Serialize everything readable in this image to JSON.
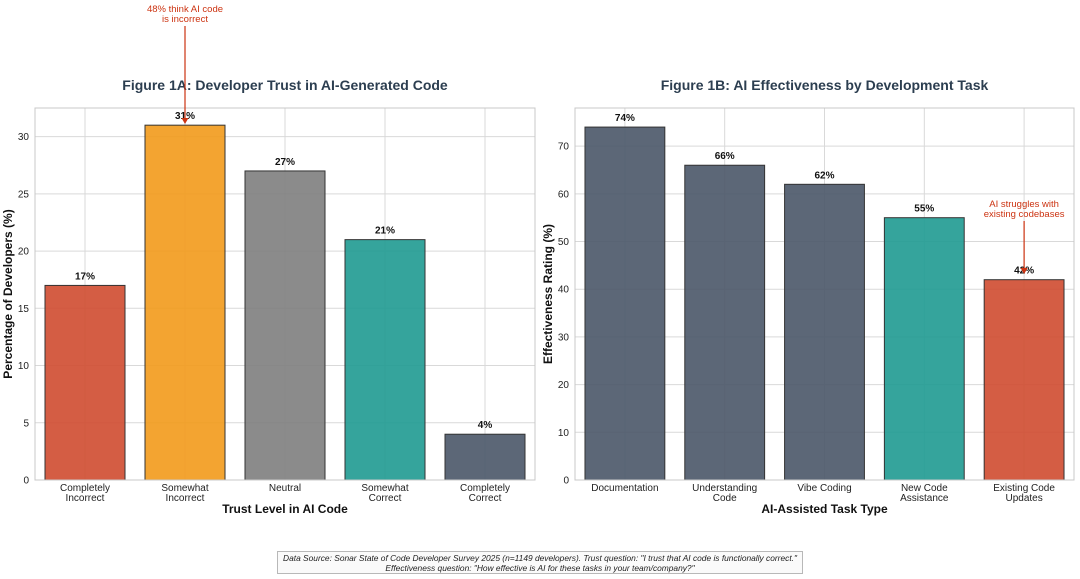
{
  "colors": {
    "red": "#cf4b30",
    "orange": "#f29a1b",
    "gray": "#7e7e7e",
    "teal": "#1f9a91",
    "slate": "#4a5668",
    "annotation": "#cc3311",
    "title": "#2c3e50"
  },
  "chart_data": [
    {
      "type": "bar",
      "title": "Figure 1A: Developer Trust in AI-Generated Code",
      "xlabel": "Trust Level in AI Code",
      "ylabel": "Percentage of Developers (%)",
      "ylim": [
        0,
        32.5
      ],
      "yticks": [
        0,
        5,
        10,
        15,
        20,
        25,
        30
      ],
      "grid": true,
      "categories": [
        [
          "Completely",
          "Incorrect"
        ],
        [
          "Somewhat",
          "Incorrect"
        ],
        [
          "Neutral"
        ],
        [
          "Somewhat",
          "Correct"
        ],
        [
          "Completely",
          "Correct"
        ]
      ],
      "values": [
        17,
        31,
        27,
        21,
        4
      ],
      "data_labels": [
        "17%",
        "31%",
        "27%",
        "21%",
        "4%"
      ],
      "bar_colors": [
        "red",
        "orange",
        "gray",
        "teal",
        "slate"
      ],
      "annotation": {
        "text": [
          "48% think AI code",
          "is incorrect"
        ],
        "target_index": 1
      }
    },
    {
      "type": "bar",
      "title": "Figure 1B: AI Effectiveness by Development Task",
      "xlabel": "AI-Assisted Task Type",
      "ylabel": "Effectiveness Rating (%)",
      "ylim": [
        0,
        78
      ],
      "yticks": [
        0,
        10,
        20,
        30,
        40,
        50,
        60,
        70
      ],
      "grid": true,
      "categories": [
        [
          "Documentation"
        ],
        [
          "Understanding",
          "Code"
        ],
        [
          "Vibe Coding"
        ],
        [
          "New Code",
          "Assistance"
        ],
        [
          "Existing Code",
          "Updates"
        ]
      ],
      "values": [
        74,
        66,
        62,
        55,
        42
      ],
      "data_labels": [
        "74%",
        "66%",
        "62%",
        "55%",
        "42%"
      ],
      "bar_colors": [
        "slate",
        "slate",
        "slate",
        "teal",
        "red"
      ],
      "annotation": {
        "text": [
          "AI struggles with",
          "existing codebases"
        ],
        "target_index": 4
      }
    }
  ],
  "footer": {
    "line1": "Data Source: Sonar State of Code Developer Survey 2025 (n=1149 developers). Trust question: \"I trust that AI code is functionally correct.\"",
    "line2": "Effectiveness question: \"How effective is AI for these tasks in your team/company?\""
  }
}
